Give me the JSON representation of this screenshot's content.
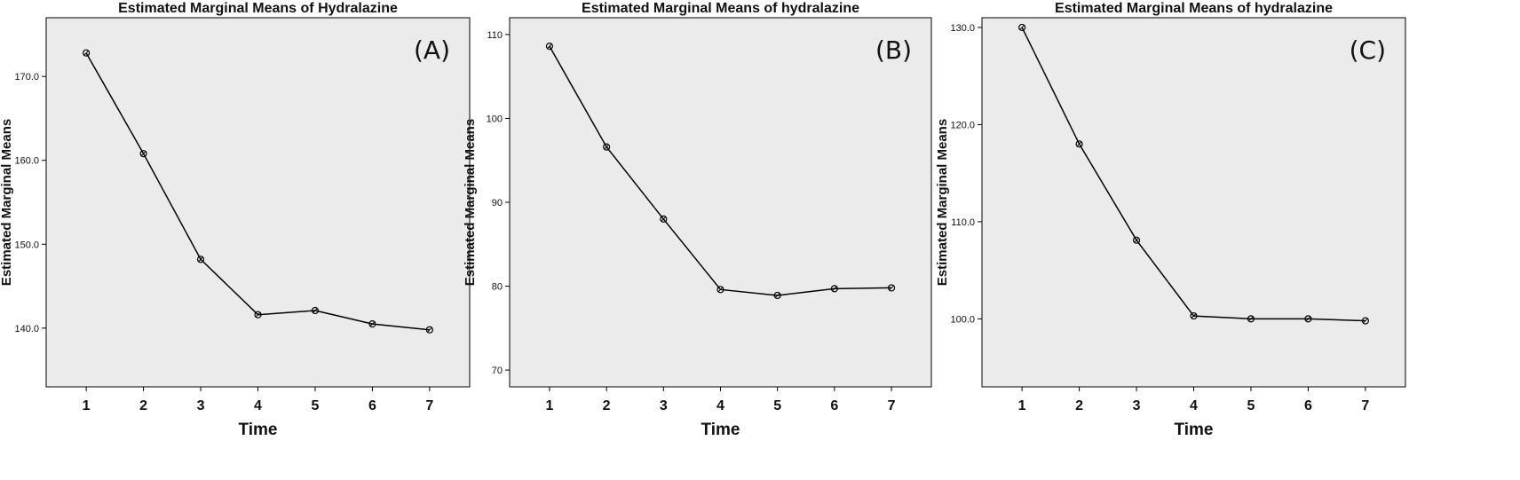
{
  "chart_data": [
    {
      "type": "line",
      "title": "Estimated Marginal Means of Hydralazine",
      "panel_label": "(A)",
      "xlabel": "Time",
      "ylabel": "Estimated Marginal Means",
      "x": [
        1,
        2,
        3,
        4,
        5,
        6,
        7
      ],
      "values": [
        172.8,
        160.8,
        148.2,
        141.6,
        142.1,
        140.5,
        139.8
      ],
      "ylim": [
        133.0,
        177.0
      ],
      "yticks": [
        140.0,
        150.0,
        160.0,
        170.0
      ],
      "ytick_labels": [
        "140.0",
        "150.0",
        "160.0",
        "170.0"
      ],
      "grid": false,
      "background": "#ebebeb"
    },
    {
      "type": "line",
      "title": "Estimated Marginal Means of hydralazine",
      "panel_label": "(B)",
      "xlabel": "Time",
      "ylabel": "Estimated Marginal Means",
      "x": [
        1,
        2,
        3,
        4,
        5,
        6,
        7
      ],
      "values": [
        108.6,
        96.6,
        88.0,
        79.6,
        78.9,
        79.7,
        79.8
      ],
      "ylim": [
        68.0,
        112.0
      ],
      "yticks": [
        70,
        80,
        90,
        100,
        110
      ],
      "ytick_labels": [
        "70",
        "80",
        "90",
        "100",
        "110"
      ],
      "grid": false,
      "background": "#ebebeb"
    },
    {
      "type": "line",
      "title": "Estimated Marginal Means of hydralazine",
      "panel_label": "(C)",
      "xlabel": "Time",
      "ylabel": "Estimated Marginal Means",
      "x": [
        1,
        2,
        3,
        4,
        5,
        6,
        7
      ],
      "values": [
        130.0,
        118.0,
        108.1,
        100.3,
        100.0,
        100.0,
        99.8
      ],
      "ylim": [
        93.0,
        131.0
      ],
      "yticks": [
        100.0,
        110.0,
        120.0,
        130.0
      ],
      "ytick_labels": [
        "100.0",
        "110.0",
        "120.0",
        "130.0"
      ],
      "grid": false,
      "background": "#ebebeb"
    }
  ]
}
